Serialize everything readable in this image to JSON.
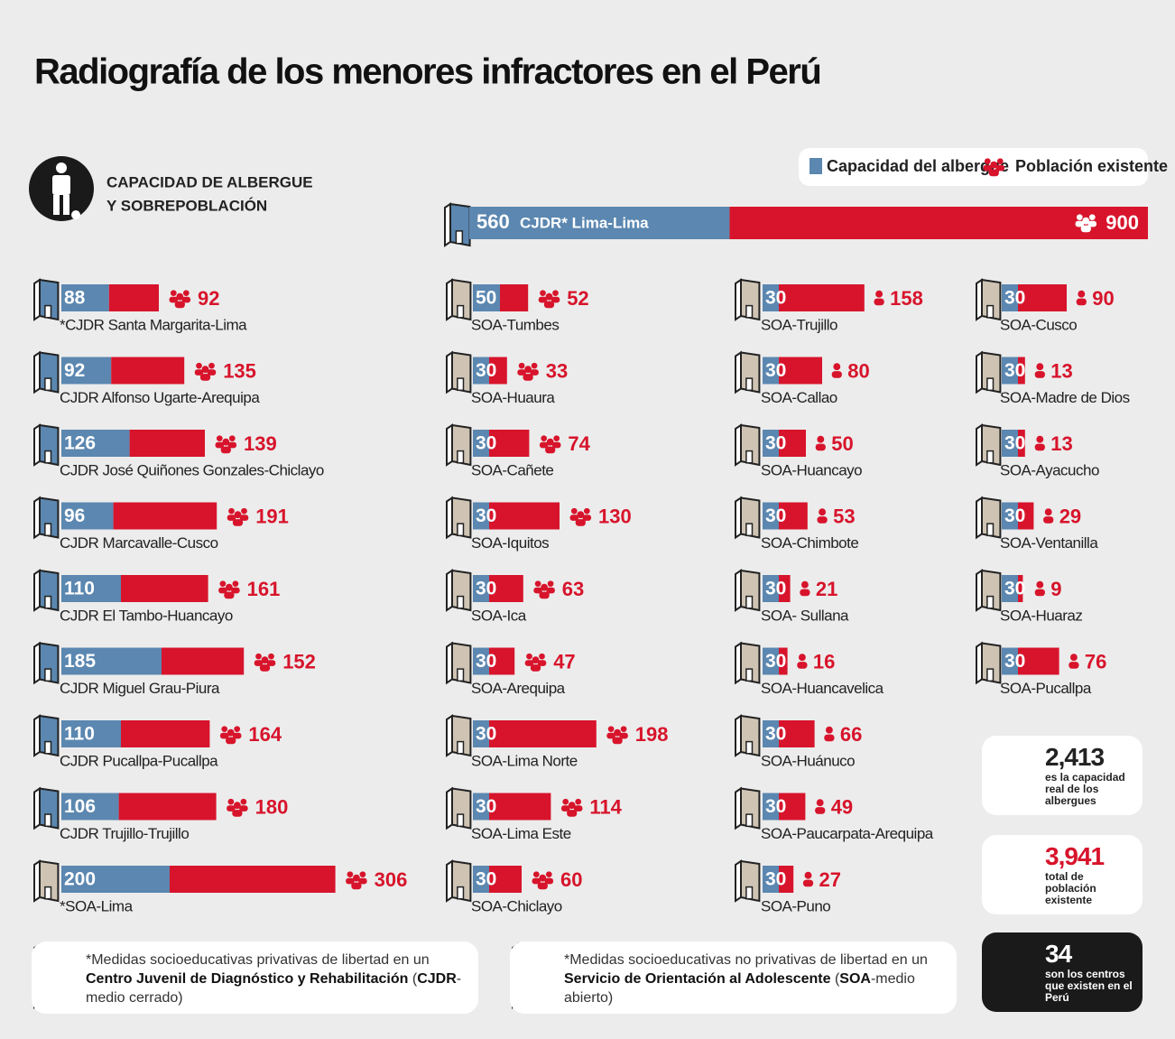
{
  "title": "Radiografía de los menores infractores en el Perú",
  "section_label": [
    "CAPACIDAD DE ALBERGUE",
    "Y SOBREPOBLACIÓN"
  ],
  "legend": {
    "capacity": "Capacidad del albergue",
    "population": "Población existente"
  },
  "colors": {
    "capacity": "#5b87b0",
    "population": "#d7142b",
    "cjdr": "#5b87b0",
    "soa": "#cfc4b4"
  },
  "featured": {
    "name": "CJDR* Lima-Lima",
    "capacity": 560,
    "population": 900
  },
  "columns": [
    [
      {
        "name": "*CJDR Santa Margarita-Lima",
        "capacity": 88,
        "population": 92
      },
      {
        "name": "CJDR Alfonso Ugarte-Arequipa",
        "capacity": 92,
        "population": 135
      },
      {
        "name": "CJDR José Quiñones Gonzales-Chiclayo",
        "capacity": 126,
        "population": 139
      },
      {
        "name": "CJDR Marcavalle-Cusco",
        "capacity": 96,
        "population": 191
      },
      {
        "name": "CJDR El Tambo-Huancayo",
        "capacity": 110,
        "population": 161
      },
      {
        "name": "CJDR Miguel Grau-Piura",
        "capacity": 185,
        "population": 152
      },
      {
        "name": "CJDR Pucallpa-Pucallpa",
        "capacity": 110,
        "population": 164
      },
      {
        "name": "CJDR Trujillo-Trujillo",
        "capacity": 106,
        "population": 180
      },
      {
        "name": "*SOA-Lima",
        "capacity": 200,
        "population": 306
      }
    ],
    [
      {
        "name": "SOA-Tumbes",
        "capacity": 50,
        "population": 52
      },
      {
        "name": "SOA-Huaura",
        "capacity": 30,
        "population": 33
      },
      {
        "name": "SOA-Cañete",
        "capacity": 30,
        "population": 74
      },
      {
        "name": "SOA-Iquitos",
        "capacity": 30,
        "population": 130
      },
      {
        "name": "SOA-Ica",
        "capacity": 30,
        "population": 63
      },
      {
        "name": "SOA-Arequipa",
        "capacity": 30,
        "population": 47
      },
      {
        "name": "SOA-Lima Norte",
        "capacity": 30,
        "population": 198
      },
      {
        "name": "SOA-Lima Este",
        "capacity": 30,
        "population": 114
      },
      {
        "name": "SOA-Chiclayo",
        "capacity": 30,
        "population": 60
      }
    ],
    [
      {
        "name": "SOA-Trujillo",
        "capacity": 30,
        "population": 158
      },
      {
        "name": "SOA-Callao",
        "capacity": 30,
        "population": 80
      },
      {
        "name": "SOA-Huancayo",
        "capacity": 30,
        "population": 50
      },
      {
        "name": "SOA-Chimbote",
        "capacity": 30,
        "population": 53
      },
      {
        "name": "SOA- Sullana",
        "capacity": 30,
        "population": 21
      },
      {
        "name": "SOA-Huancavelica",
        "capacity": 30,
        "population": 16
      },
      {
        "name": "SOA-Huánuco",
        "capacity": 30,
        "population": 66
      },
      {
        "name": "SOA-Paucarpata-Arequipa",
        "capacity": 30,
        "population": 49
      },
      {
        "name": "SOA-Puno",
        "capacity": 30,
        "population": 27
      }
    ],
    [
      {
        "name": "SOA-Cusco",
        "capacity": 30,
        "population": 90
      },
      {
        "name": "SOA-Madre de Dios",
        "capacity": 30,
        "population": 13
      },
      {
        "name": "SOA-Ayacucho",
        "capacity": 30,
        "population": 13
      },
      {
        "name": "SOA-Ventanilla",
        "capacity": 30,
        "population": 29
      },
      {
        "name": "SOA-Huaraz",
        "capacity": 30,
        "population": 9
      },
      {
        "name": "SOA-Pucallpa",
        "capacity": 30,
        "population": 76
      }
    ]
  ],
  "summary": [
    {
      "value": "2,413",
      "text": "es la capacidad real de los albergues"
    },
    {
      "value": "3,941",
      "text": "total de población existente"
    },
    {
      "value": "34",
      "text": "son los centros que existen en el Perú"
    }
  ],
  "notes": [
    [
      {
        "text": "*Medidas socioeducativas privativas de libertad en un ",
        "bold": false
      },
      {
        "text": "Centro Juvenil de Diagnóstico y Rehabilitación",
        "bold": true
      },
      {
        "text": " (",
        "bold": false
      },
      {
        "text": "CJDR",
        "bold": true
      },
      {
        "text": "-medio cerrado)",
        "bold": false
      }
    ],
    [
      {
        "text": "*Medidas socioeducativas no privativas de libertad en un ",
        "bold": false
      },
      {
        "text": "Servicio de Orientación al Adolescente",
        "bold": true
      },
      {
        "text": " (",
        "bold": false
      },
      {
        "text": "SOA",
        "bold": true
      },
      {
        "text": "-medio abierto)",
        "bold": false
      }
    ]
  ]
}
